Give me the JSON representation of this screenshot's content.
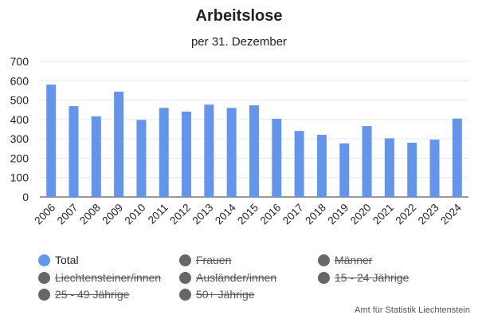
{
  "chart_data": {
    "type": "bar",
    "title": "Arbeitslose",
    "subtitle": "per 31. Dezember",
    "categories": [
      "2006",
      "2007",
      "2008",
      "2009",
      "2010",
      "2011",
      "2012",
      "2013",
      "2014",
      "2015",
      "2016",
      "2017",
      "2018",
      "2019",
      "2020",
      "2021",
      "2022",
      "2023",
      "2024"
    ],
    "series": [
      {
        "name": "Total",
        "values": [
          580,
          469,
          416,
          544,
          398,
          460,
          441,
          477,
          460,
          473,
          404,
          341,
          321,
          277,
          366,
          303,
          280,
          296,
          405
        ]
      }
    ],
    "yticks": [
      0,
      100,
      200,
      300,
      400,
      500,
      600,
      700
    ],
    "ylim": [
      0,
      700
    ],
    "grid": true,
    "bar_color": "#6495ed",
    "legend": [
      {
        "name": "Total",
        "active": true,
        "color": "#6495ed"
      },
      {
        "name": "Frauen",
        "active": false,
        "color": "#666666"
      },
      {
        "name": "Männer",
        "active": false,
        "color": "#666666"
      },
      {
        "name": "Liechtensteiner/innen",
        "active": false,
        "color": "#666666"
      },
      {
        "name": "Ausländer/innen",
        "active": false,
        "color": "#666666"
      },
      {
        "name": "15 - 24 Jährige",
        "active": false,
        "color": "#666666"
      },
      {
        "name": "25 - 49 Jährige",
        "active": false,
        "color": "#666666"
      },
      {
        "name": "50+ Jährige",
        "active": false,
        "color": "#666666"
      }
    ]
  },
  "credit": "Amt für Statistik Liechtenstein"
}
